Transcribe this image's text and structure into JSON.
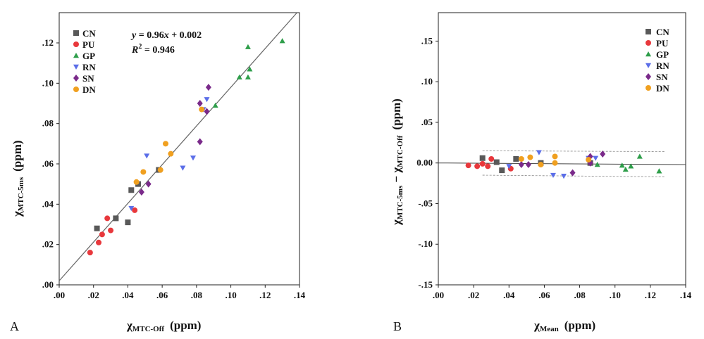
{
  "chart_data": [
    {
      "type": "scatter",
      "panel_label": "A",
      "xlabel": {
        "main": "χ",
        "sub": "MTC-Off",
        "unit": "(ppm)"
      },
      "ylabel": {
        "main": "χ",
        "sub": "MTC-5ms",
        "unit": "(ppm)"
      },
      "xlim": [
        0,
        0.14
      ],
      "ylim": [
        0,
        0.135
      ],
      "xticks": [
        0,
        0.02,
        0.04,
        0.06,
        0.08,
        0.1,
        0.12,
        0.14
      ],
      "xtick_labels": [
        ".00",
        ".02",
        ".04",
        ".06",
        ".08",
        ".10",
        ".12",
        ".14"
      ],
      "yticks": [
        0,
        0.02,
        0.04,
        0.06,
        0.08,
        0.1,
        0.12
      ],
      "ytick_labels": [
        ".00",
        ".02",
        ".04",
        ".06",
        ".08",
        ".10",
        ".12"
      ],
      "fit_line": {
        "slope": 0.96,
        "intercept": 0.002
      },
      "equation": {
        "y_var": "y",
        "eq_text": " = 0.96",
        "x_var": "x",
        "tail": " + 0.002",
        "r_var": "R",
        "r_exp": "2",
        "r_val": " = 0.946"
      },
      "legend_position": "top-left",
      "series": [
        {
          "name": "CN",
          "marker": "square",
          "color": "#595959",
          "points": [
            [
              0.022,
              0.028
            ],
            [
              0.033,
              0.033
            ],
            [
              0.04,
              0.031
            ],
            [
              0.042,
              0.047
            ],
            [
              0.046,
              0.05
            ],
            [
              0.058,
              0.057
            ]
          ]
        },
        {
          "name": "PU",
          "marker": "circle",
          "color": "#e8383c",
          "points": [
            [
              0.018,
              0.016
            ],
            [
              0.023,
              0.021
            ],
            [
              0.025,
              0.025
            ],
            [
              0.028,
              0.033
            ],
            [
              0.03,
              0.027
            ],
            [
              0.044,
              0.037
            ]
          ]
        },
        {
          "name": "GP",
          "marker": "triangle-up",
          "color": "#2e9e4a",
          "points": [
            [
              0.091,
              0.089
            ],
            [
              0.105,
              0.103
            ],
            [
              0.11,
              0.103
            ],
            [
              0.111,
              0.107
            ],
            [
              0.11,
              0.118
            ],
            [
              0.13,
              0.121
            ]
          ]
        },
        {
          "name": "RN",
          "marker": "triangle-down",
          "color": "#5b6ee8",
          "points": [
            [
              0.042,
              0.038
            ],
            [
              0.051,
              0.064
            ],
            [
              0.072,
              0.058
            ],
            [
              0.078,
              0.063
            ],
            [
              0.084,
              0.087
            ],
            [
              0.086,
              0.092
            ]
          ]
        },
        {
          "name": "SN",
          "marker": "diamond",
          "color": "#7a2a8a",
          "points": [
            [
              0.048,
              0.046
            ],
            [
              0.052,
              0.05
            ],
            [
              0.082,
              0.071
            ],
            [
              0.082,
              0.09
            ],
            [
              0.086,
              0.086
            ],
            [
              0.087,
              0.098
            ]
          ]
        },
        {
          "name": "DN",
          "marker": "circle",
          "color": "#f0a020",
          "points": [
            [
              0.045,
              0.051
            ],
            [
              0.049,
              0.056
            ],
            [
              0.059,
              0.057
            ],
            [
              0.062,
              0.07
            ],
            [
              0.065,
              0.065
            ],
            [
              0.083,
              0.087
            ]
          ]
        }
      ]
    },
    {
      "type": "scatter",
      "panel_label": "B",
      "xlabel": {
        "main": "χ",
        "sub": "Mean",
        "unit": "(ppm)"
      },
      "ylabel": {
        "main": "χ",
        "sub": "MTC-5ms",
        "minus": " − χ",
        "sub2": "MTC-Off",
        "unit": "(ppm)"
      },
      "xlim": [
        0,
        0.14
      ],
      "ylim": [
        -0.15,
        0.185
      ],
      "xticks": [
        0,
        0.02,
        0.04,
        0.06,
        0.08,
        0.1,
        0.12,
        0.14
      ],
      "xtick_labels": [
        ".00",
        ".02",
        ".04",
        ".06",
        ".08",
        ".10",
        ".12",
        ".14"
      ],
      "yticks": [
        -0.15,
        -0.1,
        -0.05,
        0,
        0.05,
        0.1,
        0.15
      ],
      "ytick_labels": [
        "-.15",
        "-.10",
        "-.05",
        "0.00",
        ".05",
        ".10",
        ".15"
      ],
      "mean_line": {
        "start": 0.0,
        "end": -0.002
      },
      "limits_upper": {
        "start": 0.015,
        "end": 0.014
      },
      "limits_lower": {
        "start": -0.015,
        "end": -0.017
      },
      "legend_position": "top-right",
      "series": [
        {
          "name": "CN",
          "marker": "square",
          "color": "#595959",
          "points": [
            [
              0.025,
              0.006
            ],
            [
              0.033,
              0.001
            ],
            [
              0.036,
              -0.009
            ],
            [
              0.044,
              0.005
            ],
            [
              0.058,
              0.0
            ],
            [
              0.086,
              0.0
            ]
          ]
        },
        {
          "name": "PU",
          "marker": "circle",
          "color": "#e8383c",
          "points": [
            [
              0.017,
              -0.003
            ],
            [
              0.022,
              -0.004
            ],
            [
              0.025,
              -0.001
            ],
            [
              0.028,
              -0.004
            ],
            [
              0.03,
              0.005
            ],
            [
              0.041,
              -0.007
            ]
          ]
        },
        {
          "name": "GP",
          "marker": "triangle-up",
          "color": "#2e9e4a",
          "points": [
            [
              0.09,
              -0.002
            ],
            [
              0.104,
              -0.003
            ],
            [
              0.106,
              -0.008
            ],
            [
              0.109,
              -0.004
            ],
            [
              0.114,
              0.008
            ],
            [
              0.125,
              -0.01
            ]
          ]
        },
        {
          "name": "RN",
          "marker": "triangle-down",
          "color": "#5b6ee8",
          "points": [
            [
              0.04,
              -0.004
            ],
            [
              0.057,
              0.013
            ],
            [
              0.065,
              -0.015
            ],
            [
              0.071,
              -0.016
            ],
            [
              0.085,
              0.006
            ],
            [
              0.089,
              0.006
            ]
          ]
        },
        {
          "name": "SN",
          "marker": "diamond",
          "color": "#7a2a8a",
          "points": [
            [
              0.047,
              -0.002
            ],
            [
              0.051,
              -0.002
            ],
            [
              0.076,
              -0.012
            ],
            [
              0.086,
              0.008
            ],
            [
              0.086,
              0.0
            ],
            [
              0.093,
              0.011
            ]
          ]
        },
        {
          "name": "DN",
          "marker": "circle",
          "color": "#f0a020",
          "points": [
            [
              0.047,
              0.005
            ],
            [
              0.052,
              0.007
            ],
            [
              0.058,
              -0.002
            ],
            [
              0.066,
              0.0
            ],
            [
              0.066,
              0.008
            ],
            [
              0.085,
              0.004
            ]
          ]
        }
      ]
    }
  ]
}
